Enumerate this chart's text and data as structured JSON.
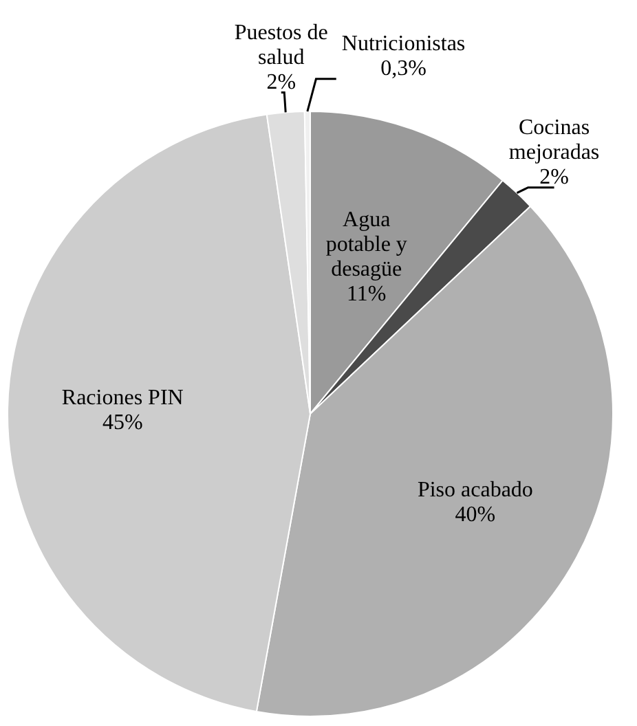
{
  "chart_data": {
    "type": "pie",
    "categories": [
      "Agua potable y desagüe",
      "Cocinas mejoradas",
      "Piso acabado",
      "Raciones PIN",
      "Puestos de salud",
      "Nutricionistas"
    ],
    "values": [
      11,
      2,
      40,
      45,
      2,
      0.3
    ],
    "colors": [
      "#9a9a9a",
      "#4a4a4a",
      "#b0b0b0",
      "#cdcdcd",
      "#dedede",
      "#f0f0f0"
    ],
    "value_labels": [
      "11%",
      "2%",
      "40%",
      "45%",
      "2%",
      "0,3%"
    ],
    "legend": false
  }
}
